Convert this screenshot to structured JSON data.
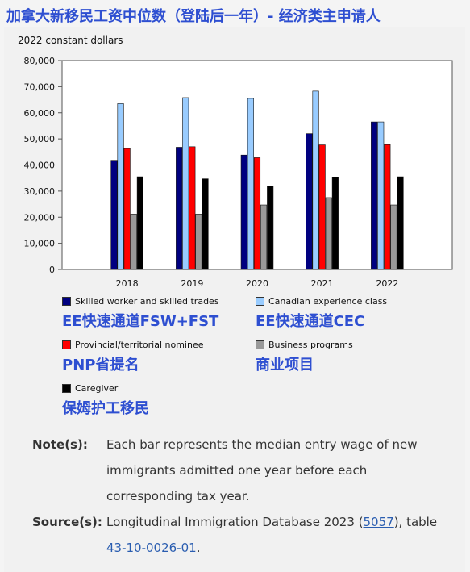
{
  "header": {
    "title": "加拿大新移民工资中位数（登陆后一年）- 经济类主申请人"
  },
  "chart_data": {
    "type": "bar",
    "ylabel": "2022 constant dollars",
    "ylim": [
      0,
      80000
    ],
    "yticks": [
      "0",
      "10,000",
      "20,000",
      "30,000",
      "40,000",
      "50,000",
      "60,000",
      "70,000",
      "80,000"
    ],
    "categories": [
      "2018",
      "2019",
      "2020",
      "2021",
      "2022"
    ],
    "series": [
      {
        "name": "Skilled worker and skilled trades",
        "color": "#000080",
        "values": [
          41800,
          46800,
          43800,
          52000,
          56500
        ]
      },
      {
        "name": "Canadian experience class",
        "color": "#99ccff",
        "values": [
          63500,
          65800,
          65500,
          68300,
          56500
        ]
      },
      {
        "name": "Provincial/territorial nominee",
        "color": "#ff0000",
        "values": [
          46300,
          47000,
          42800,
          47700,
          47800
        ]
      },
      {
        "name": "Business programs",
        "color": "#999999",
        "values": [
          21200,
          21200,
          24700,
          27500,
          24700
        ]
      },
      {
        "name": "Caregiver",
        "color": "#000000",
        "values": [
          35500,
          34700,
          32000,
          35300,
          35500
        ]
      }
    ],
    "grid": false,
    "legend_position": "bottom"
  },
  "legend_cn": [
    "EE快速通道FSW+FST",
    "EE快速通道CEC",
    "PNP省提名",
    "商业项目",
    "保姆护工移民"
  ],
  "notes": {
    "note_label": "Note(s):",
    "note_text": "Each bar represents the median entry wage of new immigrants admitted one year before each corresponding tax year.",
    "source_label": "Source(s):",
    "source_prefix": "Longitudinal Immigration Database 2023 (",
    "source_link1": "5057",
    "source_middle": "), table",
    "source_link2": "43-10-0026-01",
    "source_suffix": "."
  }
}
